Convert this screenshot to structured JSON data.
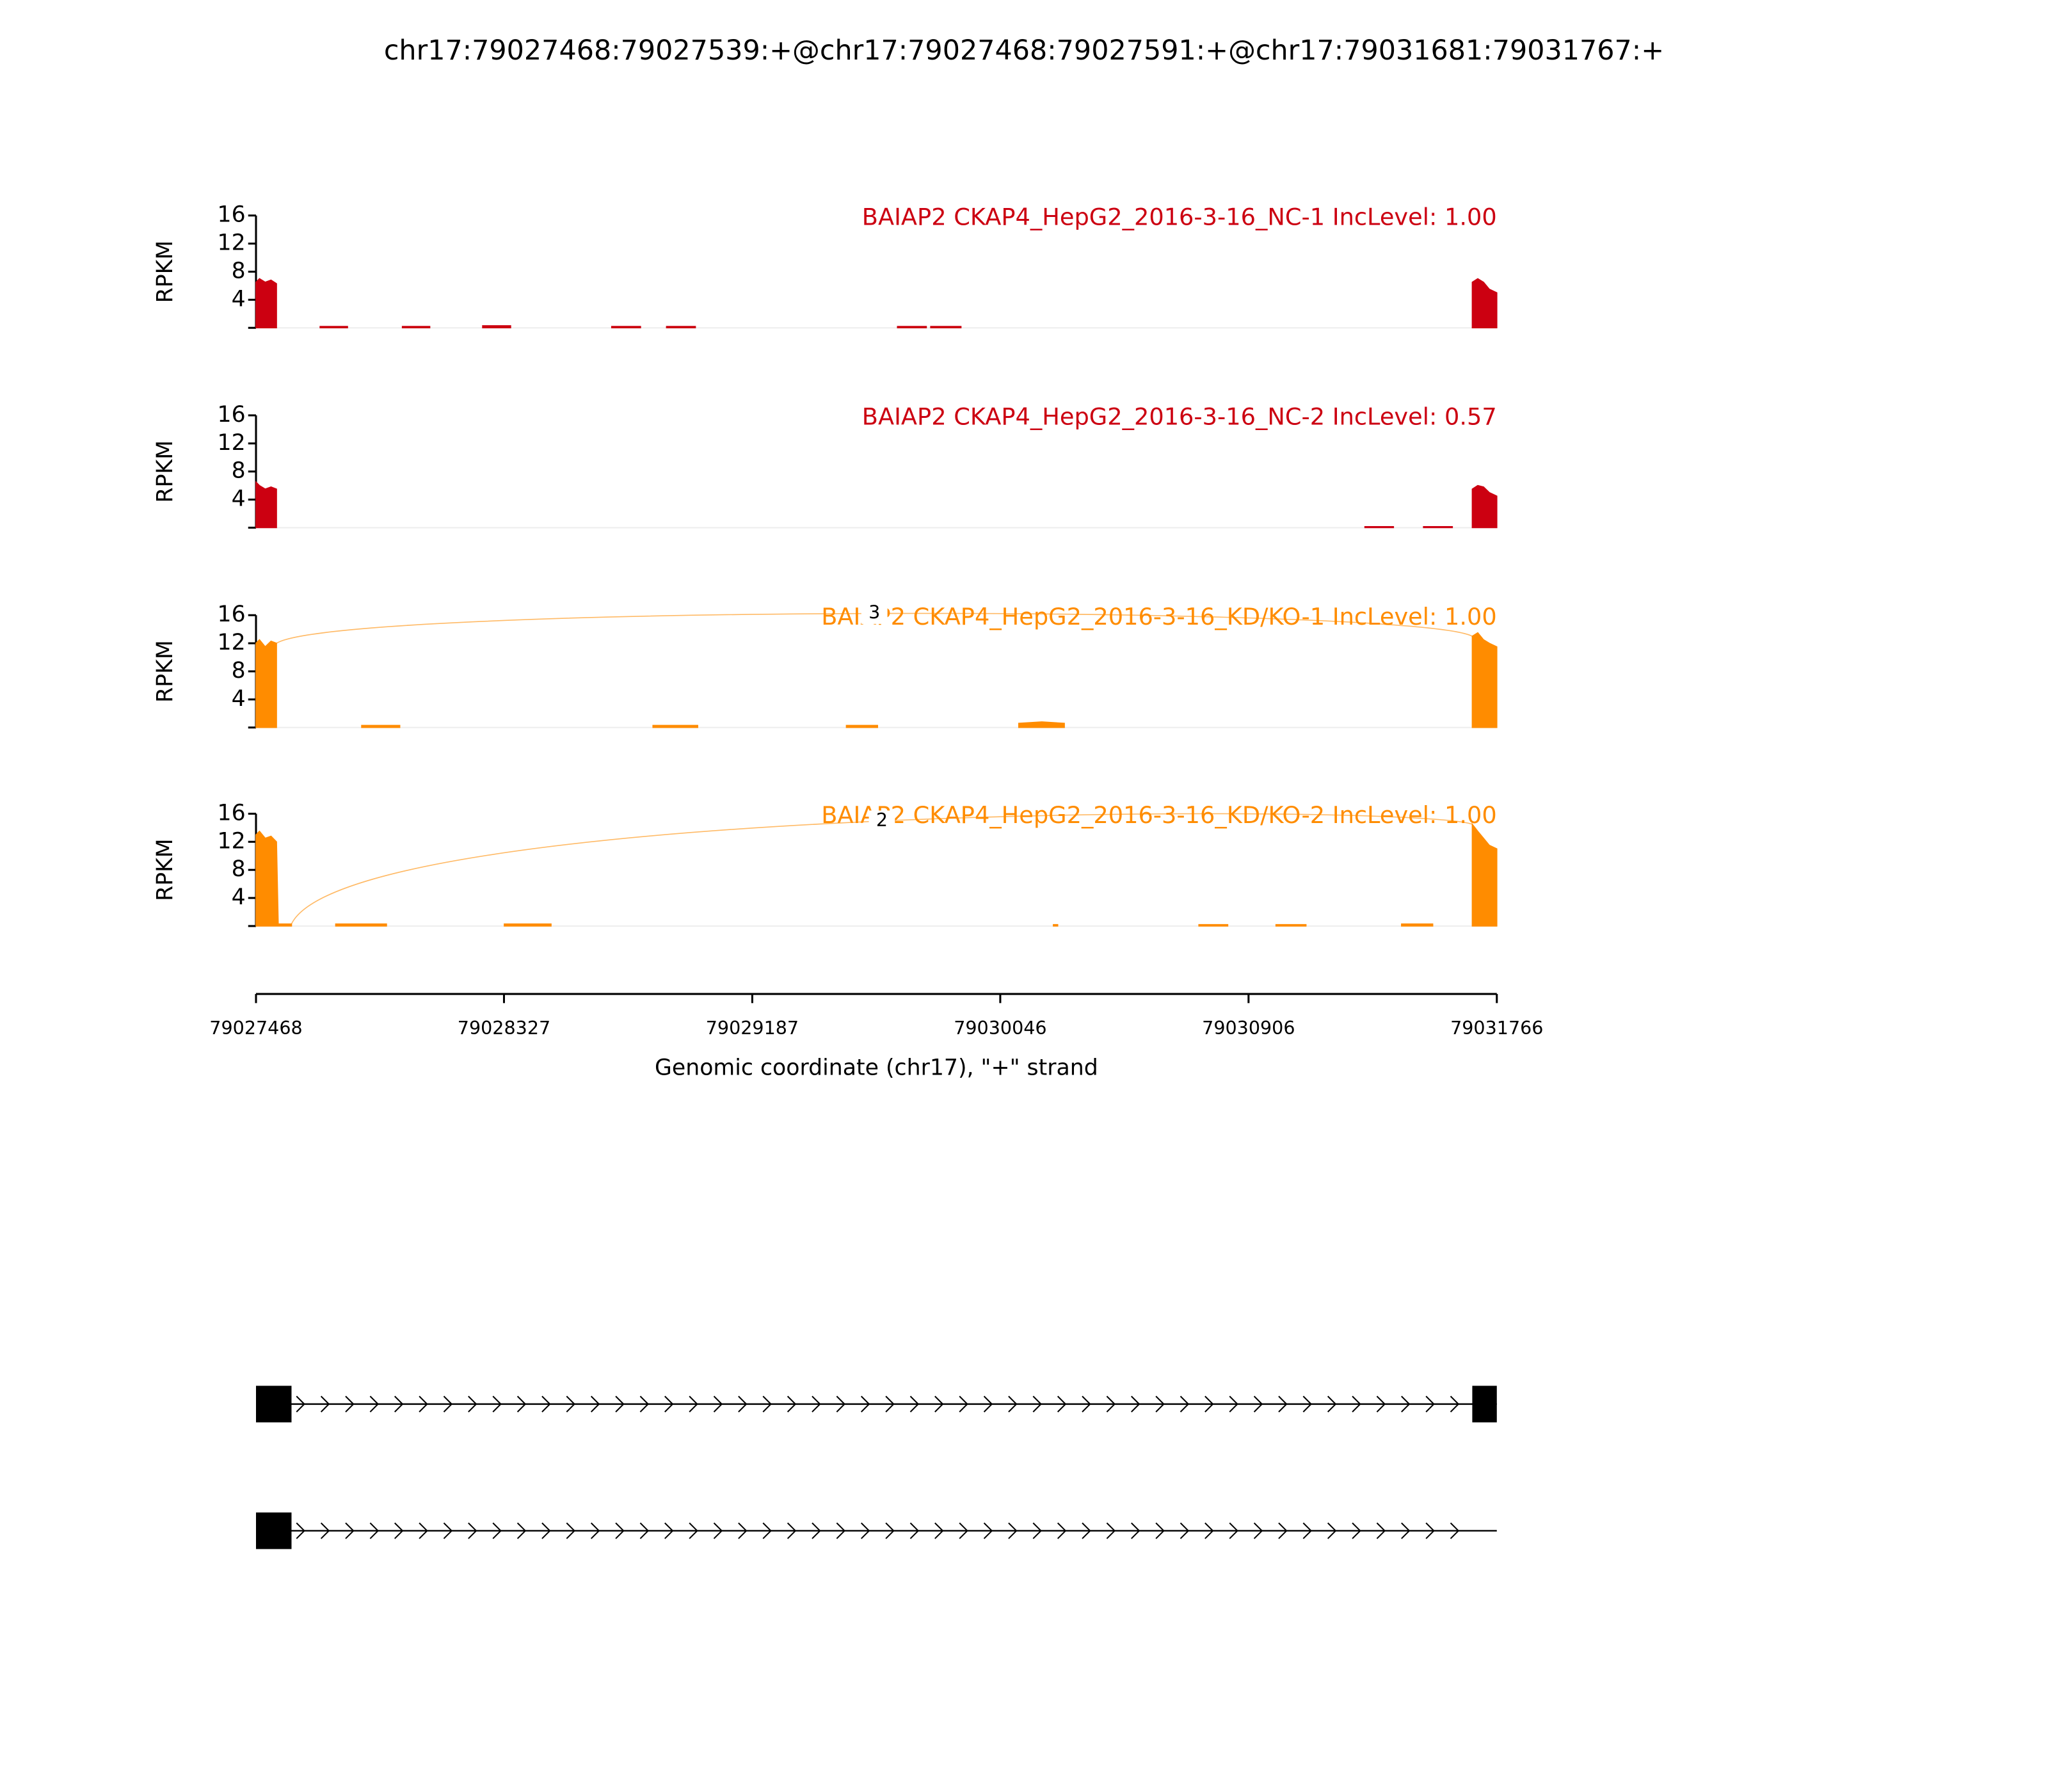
{
  "title": "chr17:79027468:79027539:+@chr17:79027468:79027591:+@chr17:79031681:79031767:+",
  "chart_data": [
    {
      "type": "area",
      "title": "BAIAP2 CKAP4_HepG2_2016-3-16_NC-1 IncLevel: 1.00",
      "color": "#cc0011",
      "y_label": "RPKM",
      "ylim": [
        0,
        16
      ],
      "yticks": [
        4,
        8,
        12,
        16
      ],
      "x": [
        79027468,
        79027480,
        79027500,
        79027520,
        79027539,
        79027600,
        79027690,
        79027785,
        79027800,
        79027975,
        79028070,
        79028080,
        79028253,
        79028350,
        79028360,
        79028700,
        79028800,
        79028810,
        79028890,
        79028990,
        79029000,
        79029690,
        79029790,
        79029800,
        79029805,
        79029910,
        79029920,
        79031681,
        79031700,
        79031720,
        79031740,
        79031766
      ],
      "values": [
        6.5,
        7,
        6.5,
        6.8,
        6.3,
        null,
        0.2,
        0.2,
        null,
        0.2,
        0.2,
        null,
        0.3,
        0.3,
        null,
        0.2,
        0.2,
        null,
        0.2,
        0.2,
        null,
        0.2,
        0.2,
        null,
        0.2,
        0.2,
        null,
        6.5,
        7,
        6.5,
        5.5,
        5
      ],
      "junctions": []
    },
    {
      "type": "area",
      "title": "BAIAP2 CKAP4_HepG2_2016-3-16_NC-2 IncLevel: 0.57",
      "color": "#cc0011",
      "y_label": "RPKM",
      "ylim": [
        0,
        16
      ],
      "yticks": [
        4,
        8,
        12,
        16
      ],
      "x": [
        79027468,
        79027480,
        79027500,
        79027520,
        79027539,
        79027600,
        79031309,
        79031408,
        79031420,
        79031512,
        79031612,
        79031620,
        79031681,
        79031700,
        79031720,
        79031740,
        79031766
      ],
      "values": [
        6.5,
        6,
        5.5,
        5.8,
        5.5,
        null,
        0.15,
        0.15,
        null,
        0.15,
        0.15,
        null,
        5.5,
        6,
        5.8,
        5,
        4.5
      ],
      "junctions": []
    },
    {
      "type": "area",
      "title": "BAIAP2 CKAP4_HepG2_2016-3-16_KD/KO-1 IncLevel: 1.00",
      "color": "#ff8c00",
      "y_label": "RPKM",
      "ylim": [
        0,
        16
      ],
      "yticks": [
        4,
        8,
        12,
        16
      ],
      "x": [
        79027468,
        79027480,
        79027500,
        79027520,
        79027539,
        79027600,
        79027834,
        79027966,
        79027980,
        79028843,
        79028998,
        79029010,
        79029513,
        79029621,
        79029630,
        79030110,
        79030190,
        79030268,
        79030280,
        79031681,
        79031700,
        79031720,
        79031740,
        79031766
      ],
      "values": [
        12,
        12.5,
        11.5,
        12.3,
        12,
        null,
        0.3,
        0.3,
        null,
        0.3,
        0.3,
        null,
        0.3,
        0.3,
        null,
        0.6,
        0.8,
        0.6,
        null,
        13,
        13.5,
        12.5,
        12,
        11.5
      ],
      "junctions": [
        {
          "start": 79027539,
          "end": 79031681,
          "count": 3
        }
      ]
    },
    {
      "type": "area",
      "title": "BAIAP2 CKAP4_HepG2_2016-3-16_KD/KO-2 IncLevel: 1.00",
      "color": "#ff8c00",
      "y_label": "RPKM",
      "ylim": [
        0,
        16
      ],
      "yticks": [
        4,
        8,
        12,
        16
      ],
      "x": [
        79027468,
        79027480,
        79027500,
        79027520,
        79027539,
        79027545,
        79027591,
        79027600,
        79027744,
        79027920,
        79027930,
        79028328,
        79028490,
        79028500,
        79030230,
        79030245,
        79030250,
        79030734,
        79030834,
        79030840,
        79031001,
        79031105,
        79031110,
        79031436,
        79031544,
        79031550,
        79031681,
        79031700,
        79031720,
        79031740,
        79031766
      ],
      "values": [
        13,
        13.5,
        12.5,
        12.8,
        12,
        0.3,
        0.3,
        null,
        0.3,
        0.3,
        null,
        0.3,
        0.3,
        null,
        0.2,
        0.2,
        null,
        0.2,
        0.2,
        null,
        0.2,
        0.2,
        null,
        0.3,
        0.3,
        null,
        14.5,
        13.5,
        12.5,
        11.5,
        11
      ],
      "junctions": [
        {
          "start": 79027591,
          "end": 79031681,
          "count": 2
        }
      ]
    }
  ],
  "x_axis": {
    "xlim": [
      79027468,
      79031766
    ],
    "xticks": [
      79027468,
      79028327,
      79029187,
      79030046,
      79030906,
      79031766
    ],
    "label": "Genomic coordinate (chr17), \"+\" strand"
  },
  "transcripts": [
    {
      "exons": [
        [
          79027468,
          79027591
        ],
        [
          79031681,
          79031766
        ]
      ]
    },
    {
      "exons": [
        [
          79027468,
          79027591
        ]
      ]
    }
  ]
}
